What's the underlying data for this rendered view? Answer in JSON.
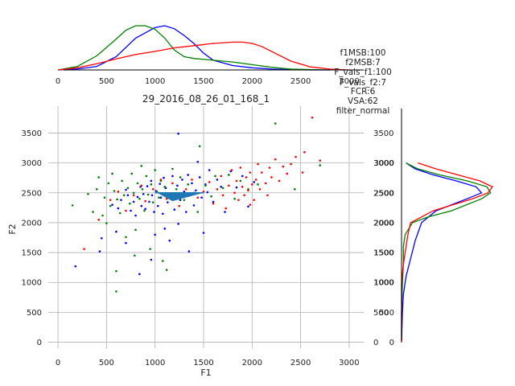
{
  "chart_data": [
    {
      "name": "main-scatter",
      "type": "scatter",
      "title": "29_2016_08_26_01_168_1",
      "xlabel": "F1",
      "ylabel": "F2",
      "xlim": [
        -100,
        3150
      ],
      "ylim": [
        -100,
        3950
      ],
      "xticks": [
        0,
        500,
        1000,
        1500,
        2000,
        2500,
        3000
      ],
      "yticks": [
        0,
        500,
        1000,
        1500,
        2000,
        2500,
        3000,
        3500
      ],
      "grid": true,
      "colors": {
        "blue": "#0000ff",
        "green": "#008000",
        "red": "#ff0000",
        "marker": "#1f77b4"
      },
      "series": [
        {
          "color": "blue",
          "points": [
            [
              180,
              1270
            ],
            [
              430,
              1520
            ],
            [
              450,
              1740
            ],
            [
              560,
              2300
            ],
            [
              600,
              1850
            ],
            [
              620,
              2240
            ],
            [
              650,
              2380
            ],
            [
              700,
              2550
            ],
            [
              720,
              2460
            ],
            [
              750,
              2200
            ],
            [
              780,
              2350
            ],
            [
              800,
              2120
            ],
            [
              820,
              2430
            ],
            [
              850,
              2600
            ],
            [
              860,
              2280
            ],
            [
              880,
              2480
            ],
            [
              900,
              2230
            ],
            [
              920,
              2610
            ],
            [
              940,
              2350
            ],
            [
              960,
              2700
            ],
            [
              970,
              2460
            ],
            [
              990,
              2180
            ],
            [
              1000,
              1800
            ],
            [
              1010,
              2530
            ],
            [
              1030,
              2280
            ],
            [
              1050,
              2650
            ],
            [
              1060,
              2420
            ],
            [
              1080,
              2150
            ],
            [
              1090,
              2750
            ],
            [
              1100,
              1900
            ],
            [
              1110,
              2580
            ],
            [
              1130,
              2340
            ],
            [
              1150,
              1700
            ],
            [
              1160,
              2450
            ],
            [
              1180,
              2780
            ],
            [
              1200,
              2220
            ],
            [
              1210,
              2480
            ],
            [
              1230,
              2620
            ],
            [
              1240,
              1980
            ],
            [
              1260,
              2380
            ],
            [
              1280,
              2720
            ],
            [
              1300,
              2520
            ],
            [
              1320,
              2180
            ],
            [
              1340,
              2800
            ],
            [
              1350,
              1520
            ],
            [
              1360,
              2460
            ],
            [
              1380,
              2660
            ],
            [
              1400,
              2290
            ],
            [
              1420,
              2540
            ],
            [
              1440,
              3020
            ],
            [
              1460,
              2760
            ],
            [
              1480,
              2420
            ],
            [
              1500,
              1830
            ],
            [
              1520,
              2640
            ],
            [
              1540,
              2510
            ],
            [
              1560,
              2880
            ],
            [
              1600,
              2350
            ],
            [
              1640,
              2720
            ],
            [
              1680,
              2600
            ],
            [
              1720,
              2180
            ],
            [
              1780,
              2860
            ],
            [
              1840,
              2590
            ],
            [
              1900,
              2780
            ],
            [
              1960,
              2270
            ],
            [
              2020,
              2680
            ],
            [
              1240,
              3490
            ],
            [
              840,
              1140
            ],
            [
              700,
              1660
            ],
            [
              960,
              1380
            ]
          ]
        },
        {
          "color": "green",
          "points": [
            [
              150,
              2290
            ],
            [
              310,
              2480
            ],
            [
              360,
              2180
            ],
            [
              400,
              2560
            ],
            [
              420,
              2760
            ],
            [
              460,
              2120
            ],
            [
              480,
              2420
            ],
            [
              500,
              1990
            ],
            [
              520,
              2660
            ],
            [
              540,
              2280
            ],
            [
              560,
              2820
            ],
            [
              580,
              2530
            ],
            [
              600,
              850
            ],
            [
              610,
              2390
            ],
            [
              640,
              2160
            ],
            [
              660,
              2700
            ],
            [
              680,
              2460
            ],
            [
              700,
              1760
            ],
            [
              720,
              2580
            ],
            [
              740,
              2320
            ],
            [
              760,
              2820
            ],
            [
              780,
              2500
            ],
            [
              800,
              1880
            ],
            [
              820,
              2660
            ],
            [
              840,
              2400
            ],
            [
              860,
              2950
            ],
            [
              870,
              2560
            ],
            [
              890,
              2200
            ],
            [
              910,
              2780
            ],
            [
              930,
              2470
            ],
            [
              950,
              1560
            ],
            [
              960,
              2640
            ],
            [
              980,
              2340
            ],
            [
              1000,
              2880
            ],
            [
              1020,
              2520
            ],
            [
              1040,
              2420
            ],
            [
              1060,
              2700
            ],
            [
              1080,
              1360
            ],
            [
              1100,
              2600
            ],
            [
              1140,
              2480
            ],
            [
              1180,
              2900
            ],
            [
              1220,
              2560
            ],
            [
              1260,
              2760
            ],
            [
              1300,
              2380
            ],
            [
              1340,
              2640
            ],
            [
              1400,
              2500
            ],
            [
              1440,
              2180
            ],
            [
              1460,
              3280
            ],
            [
              1520,
              2620
            ],
            [
              1580,
              2440
            ],
            [
              1620,
              2780
            ],
            [
              1700,
              2580
            ],
            [
              1760,
              2800
            ],
            [
              1820,
              2400
            ],
            [
              1880,
              2700
            ],
            [
              1960,
              2560
            ],
            [
              2060,
              2640
            ],
            [
              2240,
              3660
            ],
            [
              2440,
              2560
            ],
            [
              2700,
              2960
            ],
            [
              1120,
              1210
            ],
            [
              790,
              1450
            ],
            [
              600,
              1190
            ]
          ]
        },
        {
          "color": "red",
          "points": [
            [
              270,
              1560
            ],
            [
              420,
              2050
            ],
            [
              540,
              2380
            ],
            [
              620,
              2520
            ],
            [
              700,
              2200
            ],
            [
              780,
              2460
            ],
            [
              860,
              2620
            ],
            [
              900,
              2360
            ],
            [
              980,
              2560
            ],
            [
              1060,
              2720
            ],
            [
              1120,
              2400
            ],
            [
              1180,
              2660
            ],
            [
              1250,
              2280
            ],
            [
              1320,
              2560
            ],
            [
              1380,
              2720
            ],
            [
              1440,
              2420
            ],
            [
              1500,
              2520
            ],
            [
              1560,
              2680
            ],
            [
              1600,
              2320
            ],
            [
              1640,
              2560
            ],
            [
              1680,
              2780
            ],
            [
              1700,
              2460
            ],
            [
              1730,
              2240
            ],
            [
              1760,
              2620
            ],
            [
              1790,
              2880
            ],
            [
              1820,
              2500
            ],
            [
              1840,
              2700
            ],
            [
              1860,
              2380
            ],
            [
              1880,
              2920
            ],
            [
              1900,
              2600
            ],
            [
              1920,
              2460
            ],
            [
              1940,
              2760
            ],
            [
              1960,
              2540
            ],
            [
              1980,
              2840
            ],
            [
              2000,
              2640
            ],
            [
              2020,
              2380
            ],
            [
              2040,
              2720
            ],
            [
              2060,
              2980
            ],
            [
              2080,
              2560
            ],
            [
              2100,
              2840
            ],
            [
              2140,
              2660
            ],
            [
              2180,
              2920
            ],
            [
              2200,
              2760
            ],
            [
              2240,
              3060
            ],
            [
              2280,
              2700
            ],
            [
              2320,
              2940
            ],
            [
              2360,
              2820
            ],
            [
              2400,
              2980
            ],
            [
              2450,
              3100
            ],
            [
              2540,
              3180
            ],
            [
              2620,
              3760
            ],
            [
              2700,
              3040
            ],
            [
              2520,
              2840
            ],
            [
              2160,
              2460
            ],
            [
              1980,
              2300
            ]
          ]
        }
      ],
      "markers": [
        {
          "type": "triangle",
          "vertices": [
            [
              1020,
              2500
            ],
            [
              1500,
              2500
            ],
            [
              1180,
              2360
            ]
          ]
        },
        {
          "type": "line",
          "x": [
            1000,
            1500
          ],
          "y": [
            2500,
            2500
          ]
        }
      ]
    },
    {
      "name": "top-density",
      "type": "line",
      "xlim": [
        -100,
        3150
      ],
      "xticks": [
        0,
        500,
        1000,
        1500,
        2000,
        2500,
        3000
      ],
      "series": [
        {
          "color": "blue",
          "x": [
            0,
            200,
            400,
            600,
            800,
            1000,
            1100,
            1200,
            1300,
            1400,
            1500,
            1600,
            1800,
            2000,
            2200,
            2400,
            2600,
            2800
          ],
          "y": [
            0,
            0.02,
            0.08,
            0.3,
            0.72,
            0.96,
            1.0,
            0.93,
            0.78,
            0.6,
            0.38,
            0.22,
            0.1,
            0.05,
            0.02,
            0.01,
            0,
            0
          ]
        },
        {
          "color": "green",
          "x": [
            0,
            200,
            400,
            600,
            700,
            800,
            900,
            1000,
            1100,
            1200,
            1300,
            1400,
            1600,
            1800,
            2000,
            2200,
            2400,
            2600,
            2800
          ],
          "y": [
            0,
            0.08,
            0.32,
            0.7,
            0.9,
            1.0,
            1.0,
            0.92,
            0.72,
            0.45,
            0.3,
            0.26,
            0.22,
            0.18,
            0.12,
            0.06,
            0.02,
            0.01,
            0
          ]
        },
        {
          "color": "red",
          "x": [
            0,
            200,
            400,
            600,
            800,
            1000,
            1200,
            1400,
            1600,
            1800,
            1900,
            2000,
            2100,
            2200,
            2400,
            2600,
            2800,
            3000
          ],
          "y": [
            0,
            0.05,
            0.14,
            0.25,
            0.35,
            0.42,
            0.5,
            0.55,
            0.6,
            0.63,
            0.63,
            0.6,
            0.53,
            0.42,
            0.2,
            0.07,
            0.02,
            0
          ]
        }
      ]
    },
    {
      "name": "right-density",
      "type": "line",
      "ylim": [
        -100,
        3950
      ],
      "yticks": [
        0,
        500,
        1000,
        1500,
        2000,
        2500,
        3000
      ],
      "series": [
        {
          "color": "blue",
          "y": [
            0,
            500,
            800,
            1100,
            1400,
            1700,
            2000,
            2200,
            2400,
            2500,
            2600,
            2700,
            2800,
            2900,
            3000
          ],
          "x": [
            0,
            0.01,
            0.02,
            0.05,
            0.1,
            0.15,
            0.22,
            0.38,
            0.72,
            0.88,
            0.82,
            0.6,
            0.35,
            0.15,
            0.05
          ]
        },
        {
          "color": "green",
          "y": [
            0,
            500,
            1000,
            1300,
            1600,
            1800,
            2000,
            2100,
            2200,
            2400,
            2500,
            2600,
            2700,
            2800,
            2900,
            3000
          ],
          "x": [
            0,
            0.0,
            0.01,
            0.02,
            0.02,
            0.04,
            0.12,
            0.3,
            0.55,
            0.88,
            0.98,
            0.94,
            0.72,
            0.42,
            0.18,
            0.05
          ]
        },
        {
          "color": "red",
          "y": [
            0,
            500,
            1000,
            1300,
            1500,
            1800,
            2000,
            2200,
            2400,
            2500,
            2600,
            2700,
            2800,
            2900,
            3000
          ],
          "x": [
            0,
            0,
            0,
            0.02,
            0.04,
            0.07,
            0.1,
            0.35,
            0.78,
            0.95,
            1.0,
            0.86,
            0.62,
            0.38,
            0.18
          ]
        }
      ]
    }
  ],
  "info_lines": [
    "f1MSB:100",
    "f2MSB:7",
    "F_vals_f1:100",
    "F_vals_f2:7",
    "FCR:6",
    "VSA:62",
    "filter_normal"
  ],
  "overlap_tick": "3000"
}
